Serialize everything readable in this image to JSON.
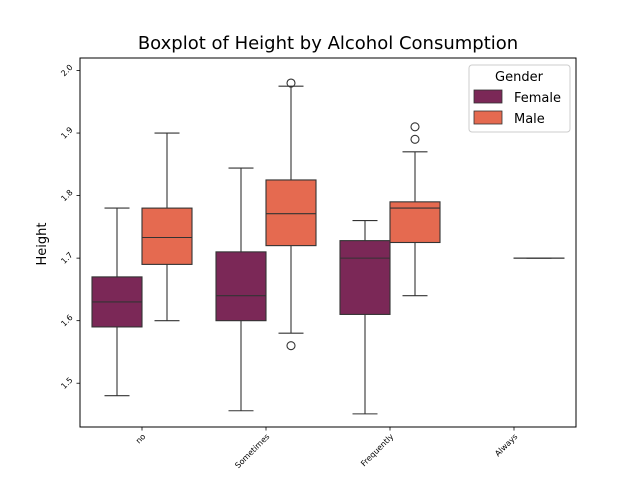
{
  "chart_data": {
    "type": "box",
    "title": "Boxplot of Height by Alcohol Consumption",
    "xlabel": "",
    "ylabel": "Height",
    "categories": [
      "no",
      "Sometimes",
      "Frequently",
      "Always"
    ],
    "ylim": [
      1.43,
      2.02
    ],
    "yticks": [
      "1.5",
      "1.6",
      "1.7",
      "1.8",
      "1.9",
      "2.0"
    ],
    "legend": {
      "title": "Gender",
      "position": "top-right"
    },
    "series": [
      {
        "name": "Female",
        "color": "#7b2857",
        "boxes": [
          {
            "category": "no",
            "whisker_low": 1.48,
            "q1": 1.59,
            "median": 1.63,
            "q3": 1.67,
            "whisker_high": 1.78,
            "outliers": []
          },
          {
            "category": "Sometimes",
            "whisker_low": 1.456,
            "q1": 1.6,
            "median": 1.64,
            "q3": 1.71,
            "whisker_high": 1.844,
            "outliers": []
          },
          {
            "category": "Frequently",
            "whisker_low": 1.451,
            "q1": 1.61,
            "median": 1.7,
            "q3": 1.728,
            "whisker_high": 1.76,
            "outliers": []
          }
        ]
      },
      {
        "name": "Male",
        "color": "#e56a50",
        "boxes": [
          {
            "category": "no",
            "whisker_low": 1.6,
            "q1": 1.69,
            "median": 1.733,
            "q3": 1.78,
            "whisker_high": 1.9,
            "outliers": []
          },
          {
            "category": "Sometimes",
            "whisker_low": 1.58,
            "q1": 1.72,
            "median": 1.771,
            "q3": 1.825,
            "whisker_high": 1.975,
            "outliers": [
              1.56,
              1.98
            ]
          },
          {
            "category": "Frequently",
            "whisker_low": 1.64,
            "q1": 1.725,
            "median": 1.78,
            "q3": 1.79,
            "whisker_high": 1.87,
            "outliers": [
              1.89,
              1.91
            ]
          },
          {
            "category": "Always",
            "whisker_low": 1.7,
            "q1": 1.7,
            "median": 1.7,
            "q3": 1.7,
            "whisker_high": 1.7,
            "outliers": []
          }
        ]
      }
    ]
  }
}
